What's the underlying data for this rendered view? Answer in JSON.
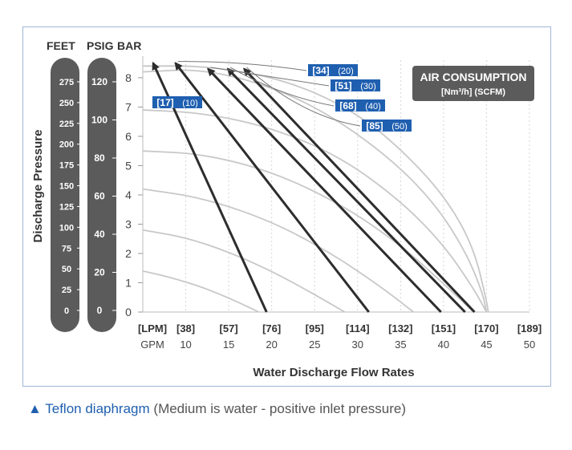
{
  "chart_data": {
    "type": "line",
    "units_header": [
      "FEET",
      "PSIG",
      "BAR"
    ],
    "ylabel": "Discharge Pressure",
    "xlabel": "Water Discharge Flow Rates",
    "feet_ticks": [
      "275",
      "250",
      "225",
      "200",
      "175",
      "150",
      "125",
      "100",
      "75",
      "50",
      "25",
      "0"
    ],
    "psig_ticks": [
      "120",
      "100",
      "80",
      "60",
      "40",
      "20",
      "0"
    ],
    "bar_ticks": [
      "8",
      "7",
      "6",
      "5",
      "4",
      "3",
      "2",
      "1",
      "0"
    ],
    "x_ticks_lpm": [
      "[LPM]",
      "[38]",
      "[57]",
      "[76]",
      "[95]",
      "[114]",
      "[132]",
      "[151]",
      "[170]",
      "[189]"
    ],
    "x_ticks_gpm": [
      "GPM",
      "10",
      "15",
      "20",
      "25",
      "30",
      "35",
      "40",
      "45",
      "50"
    ],
    "xlim": [
      5,
      50
    ],
    "ylim": [
      0,
      8.6
    ],
    "air_consumption_title": "AIR CONSUMPTION",
    "air_consumption_units": "[Nm³/h] (SCFM)",
    "air_series": [
      {
        "label_nm": "[17]",
        "label_scfm": "(10)",
        "points": [
          [
            6.2,
            8.5
          ],
          [
            19.4,
            0
          ]
        ]
      },
      {
        "label_nm": "[34]",
        "label_scfm": "(20)",
        "points": [
          [
            8.8,
            8.5
          ],
          [
            31.3,
            0
          ]
        ]
      },
      {
        "label_nm": "[51]",
        "label_scfm": "(30)",
        "points": [
          [
            12.6,
            8.3
          ],
          [
            39.7,
            0
          ]
        ]
      },
      {
        "label_nm": "[68]",
        "label_scfm": "(40)",
        "points": [
          [
            14.9,
            8.3
          ],
          [
            42.5,
            0
          ]
        ]
      },
      {
        "label_nm": "[85]",
        "label_scfm": "(50)",
        "points": [
          [
            16.8,
            8.3
          ],
          [
            43.6,
            0
          ]
        ]
      }
    ],
    "pressure_curves": [
      {
        "points": [
          [
            5,
            1.4
          ],
          [
            8,
            1.2
          ],
          [
            12,
            0.85
          ],
          [
            16,
            0.35
          ],
          [
            18.5,
            0
          ]
        ]
      },
      {
        "points": [
          [
            5,
            2.8
          ],
          [
            10,
            2.55
          ],
          [
            15,
            2.05
          ],
          [
            20,
            1.4
          ],
          [
            25,
            0.6
          ],
          [
            28.5,
            0
          ]
        ]
      },
      {
        "points": [
          [
            5,
            4.2
          ],
          [
            12,
            3.9
          ],
          [
            20,
            3.1
          ],
          [
            27,
            2.0
          ],
          [
            33,
            0.8
          ],
          [
            36.5,
            0
          ]
        ]
      },
      {
        "points": [
          [
            5,
            5.5
          ],
          [
            12,
            5.4
          ],
          [
            20,
            4.8
          ],
          [
            28,
            3.7
          ],
          [
            35,
            2.3
          ],
          [
            41,
            0.7
          ],
          [
            43.5,
            0
          ]
        ]
      },
      {
        "points": [
          [
            5,
            6.9
          ],
          [
            12,
            6.8
          ],
          [
            20,
            6.3
          ],
          [
            28,
            5.3
          ],
          [
            35,
            3.8
          ],
          [
            40,
            2.3
          ],
          [
            43.5,
            0.8
          ],
          [
            45,
            0
          ]
        ]
      },
      {
        "points": [
          [
            5,
            8.2
          ],
          [
            12,
            8.3
          ],
          [
            20,
            7.7
          ],
          [
            27,
            6.7
          ],
          [
            34,
            5.2
          ],
          [
            39,
            3.7
          ],
          [
            42.5,
            2.1
          ],
          [
            44.5,
            0.7
          ],
          [
            45,
            0
          ]
        ]
      },
      {
        "points": [
          [
            5,
            8.4
          ],
          [
            13,
            8.4
          ],
          [
            22,
            7.9
          ],
          [
            30,
            6.8
          ],
          [
            36,
            5.3
          ],
          [
            40.5,
            3.8
          ],
          [
            43.5,
            2.2
          ],
          [
            45,
            0.4
          ],
          [
            45.2,
            0
          ]
        ]
      }
    ],
    "grid": true
  },
  "caption": {
    "marker": "▲",
    "title": "Teflon diaphragm",
    "note": "(Medium is water -  positive inlet pressure)"
  }
}
